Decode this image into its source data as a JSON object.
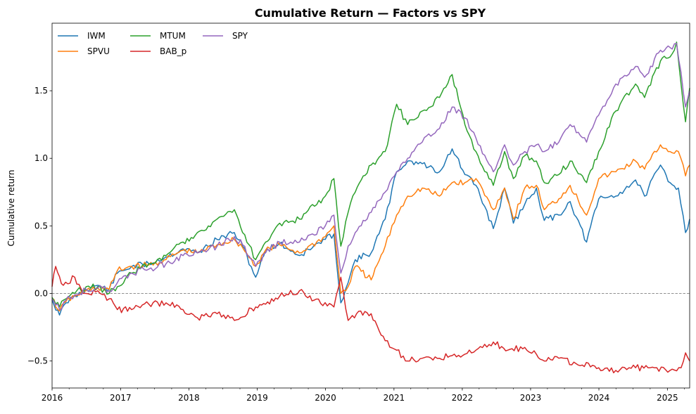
{
  "chart_data": {
    "type": "line",
    "title": "Cumulative Return — Factors vs SPY",
    "xlabel": "",
    "ylabel": "Cumulative return",
    "xlim": [
      "2016-01-01",
      "2025-04-30"
    ],
    "ylim": [
      -0.7,
      2.0
    ],
    "x_ticks": [
      "2016",
      "2017",
      "2018",
      "2019",
      "2020",
      "2021",
      "2022",
      "2023",
      "2024",
      "2025"
    ],
    "y_ticks": [
      -0.5,
      0.0,
      0.5,
      1.0,
      1.5
    ],
    "y_tick_labels": [
      "−0.5",
      "0.0",
      "0.5",
      "1.0",
      "1.5"
    ],
    "reference_line": {
      "y": 0.0,
      "style": "dashed",
      "color": "#808080"
    },
    "grid": false,
    "legend_position": "top-left",
    "series": [
      {
        "name": "IWM",
        "color": "#1f77b4",
        "points": [
          [
            "2016-01-01",
            -0.05
          ],
          [
            "2016-02-10",
            -0.16
          ],
          [
            "2016-03-15",
            -0.07
          ],
          [
            "2016-05-01",
            -0.02
          ],
          [
            "2016-07-01",
            0.03
          ],
          [
            "2016-09-01",
            0.06
          ],
          [
            "2016-11-01",
            0.03
          ],
          [
            "2016-12-15",
            0.15
          ],
          [
            "2017-03-01",
            0.2
          ],
          [
            "2017-06-01",
            0.22
          ],
          [
            "2017-09-01",
            0.27
          ],
          [
            "2017-12-01",
            0.33
          ],
          [
            "2018-02-15",
            0.3
          ],
          [
            "2018-06-01",
            0.4
          ],
          [
            "2018-09-01",
            0.45
          ],
          [
            "2018-10-15",
            0.35
          ],
          [
            "2018-12-24",
            0.12
          ],
          [
            "2019-02-15",
            0.32
          ],
          [
            "2019-05-01",
            0.37
          ],
          [
            "2019-08-15",
            0.28
          ],
          [
            "2019-12-31",
            0.4
          ],
          [
            "2020-02-15",
            0.44
          ],
          [
            "2020-03-23",
            -0.07
          ],
          [
            "2020-05-01",
            0.08
          ],
          [
            "2020-06-08",
            0.25
          ],
          [
            "2020-09-01",
            0.3
          ],
          [
            "2020-11-15",
            0.55
          ],
          [
            "2021-01-15",
            0.9
          ],
          [
            "2021-03-15",
            0.98
          ],
          [
            "2021-06-01",
            0.96
          ],
          [
            "2021-09-01",
            0.9
          ],
          [
            "2021-11-08",
            1.07
          ],
          [
            "2022-01-15",
            0.88
          ],
          [
            "2022-03-15",
            0.8
          ],
          [
            "2022-06-16",
            0.48
          ],
          [
            "2022-08-15",
            0.78
          ],
          [
            "2022-10-01",
            0.52
          ],
          [
            "2022-12-01",
            0.66
          ],
          [
            "2023-02-01",
            0.78
          ],
          [
            "2023-03-15",
            0.54
          ],
          [
            "2023-06-01",
            0.58
          ],
          [
            "2023-07-31",
            0.68
          ],
          [
            "2023-10-27",
            0.38
          ],
          [
            "2023-12-31",
            0.7
          ],
          [
            "2024-03-31",
            0.72
          ],
          [
            "2024-07-15",
            0.84
          ],
          [
            "2024-09-01",
            0.72
          ],
          [
            "2024-11-25",
            0.95
          ],
          [
            "2025-01-15",
            0.82
          ],
          [
            "2025-03-01",
            0.78
          ],
          [
            "2025-04-08",
            0.45
          ],
          [
            "2025-04-30",
            0.55
          ]
        ]
      },
      {
        "name": "SPVU",
        "color": "#ff7f0e",
        "points": [
          [
            "2016-01-01",
            -0.04
          ],
          [
            "2016-02-10",
            -0.13
          ],
          [
            "2016-03-15",
            -0.06
          ],
          [
            "2016-05-01",
            -0.02
          ],
          [
            "2016-07-01",
            0.02
          ],
          [
            "2016-09-01",
            0.04
          ],
          [
            "2016-11-01",
            0.03
          ],
          [
            "2016-12-15",
            0.17
          ],
          [
            "2017-03-01",
            0.2
          ],
          [
            "2017-06-01",
            0.21
          ],
          [
            "2017-09-01",
            0.25
          ],
          [
            "2017-12-01",
            0.32
          ],
          [
            "2018-02-15",
            0.3
          ],
          [
            "2018-06-01",
            0.36
          ],
          [
            "2018-09-01",
            0.4
          ],
          [
            "2018-10-15",
            0.34
          ],
          [
            "2018-12-24",
            0.2
          ],
          [
            "2019-02-15",
            0.32
          ],
          [
            "2019-05-01",
            0.36
          ],
          [
            "2019-08-15",
            0.3
          ],
          [
            "2019-12-31",
            0.42
          ],
          [
            "2020-02-15",
            0.5
          ],
          [
            "2020-03-23",
            0.0
          ],
          [
            "2020-05-01",
            0.05
          ],
          [
            "2020-06-08",
            0.2
          ],
          [
            "2020-09-01",
            0.1
          ],
          [
            "2020-11-15",
            0.35
          ],
          [
            "2021-01-15",
            0.58
          ],
          [
            "2021-03-15",
            0.72
          ],
          [
            "2021-06-01",
            0.78
          ],
          [
            "2021-09-01",
            0.72
          ],
          [
            "2021-11-08",
            0.82
          ],
          [
            "2022-01-15",
            0.82
          ],
          [
            "2022-03-15",
            0.85
          ],
          [
            "2022-06-16",
            0.62
          ],
          [
            "2022-08-15",
            0.78
          ],
          [
            "2022-10-01",
            0.55
          ],
          [
            "2022-12-01",
            0.78
          ],
          [
            "2023-02-01",
            0.8
          ],
          [
            "2023-03-15",
            0.62
          ],
          [
            "2023-06-01",
            0.7
          ],
          [
            "2023-07-31",
            0.8
          ],
          [
            "2023-10-27",
            0.58
          ],
          [
            "2023-12-31",
            0.85
          ],
          [
            "2024-03-31",
            0.9
          ],
          [
            "2024-07-15",
            0.98
          ],
          [
            "2024-09-01",
            0.92
          ],
          [
            "2024-11-25",
            1.1
          ],
          [
            "2025-01-15",
            1.05
          ],
          [
            "2025-03-01",
            1.05
          ],
          [
            "2025-04-08",
            0.87
          ],
          [
            "2025-04-30",
            0.95
          ]
        ]
      },
      {
        "name": "MTUM",
        "color": "#2ca02c",
        "points": [
          [
            "2016-01-01",
            -0.03
          ],
          [
            "2016-02-10",
            -0.1
          ],
          [
            "2016-03-15",
            -0.04
          ],
          [
            "2016-05-01",
            0.0
          ],
          [
            "2016-07-01",
            0.05
          ],
          [
            "2016-09-01",
            0.05
          ],
          [
            "2016-11-01",
            0.0
          ],
          [
            "2016-12-15",
            0.05
          ],
          [
            "2017-03-01",
            0.15
          ],
          [
            "2017-06-01",
            0.22
          ],
          [
            "2017-09-01",
            0.28
          ],
          [
            "2017-12-01",
            0.38
          ],
          [
            "2018-02-15",
            0.45
          ],
          [
            "2018-06-01",
            0.55
          ],
          [
            "2018-09-01",
            0.62
          ],
          [
            "2018-10-15",
            0.45
          ],
          [
            "2018-12-24",
            0.25
          ],
          [
            "2019-02-15",
            0.38
          ],
          [
            "2019-05-01",
            0.52
          ],
          [
            "2019-08-15",
            0.55
          ],
          [
            "2019-12-31",
            0.72
          ],
          [
            "2020-02-15",
            0.85
          ],
          [
            "2020-03-23",
            0.35
          ],
          [
            "2020-05-01",
            0.6
          ],
          [
            "2020-06-08",
            0.75
          ],
          [
            "2020-09-01",
            0.95
          ],
          [
            "2020-11-15",
            1.05
          ],
          [
            "2021-01-15",
            1.4
          ],
          [
            "2021-03-15",
            1.25
          ],
          [
            "2021-06-01",
            1.35
          ],
          [
            "2021-09-01",
            1.45
          ],
          [
            "2021-11-08",
            1.62
          ],
          [
            "2022-01-15",
            1.25
          ],
          [
            "2022-03-15",
            1.05
          ],
          [
            "2022-06-16",
            0.8
          ],
          [
            "2022-08-15",
            1.05
          ],
          [
            "2022-10-01",
            0.85
          ],
          [
            "2022-12-01",
            1.02
          ],
          [
            "2023-02-01",
            0.98
          ],
          [
            "2023-03-15",
            0.82
          ],
          [
            "2023-06-01",
            0.88
          ],
          [
            "2023-07-31",
            0.98
          ],
          [
            "2023-10-27",
            0.82
          ],
          [
            "2023-12-31",
            1.05
          ],
          [
            "2024-03-31",
            1.35
          ],
          [
            "2024-07-15",
            1.55
          ],
          [
            "2024-09-01",
            1.45
          ],
          [
            "2024-11-25",
            1.72
          ],
          [
            "2025-01-15",
            1.75
          ],
          [
            "2025-02-19",
            1.86
          ],
          [
            "2025-04-08",
            1.27
          ],
          [
            "2025-04-30",
            1.52
          ]
        ]
      },
      {
        "name": "BAB_p",
        "color": "#d62728",
        "points": [
          [
            "2016-01-01",
            0.05
          ],
          [
            "2016-01-20",
            0.2
          ],
          [
            "2016-03-01",
            0.06
          ],
          [
            "2016-05-01",
            0.12
          ],
          [
            "2016-06-15",
            0.0
          ],
          [
            "2016-09-01",
            0.02
          ],
          [
            "2016-11-01",
            -0.04
          ],
          [
            "2016-12-15",
            -0.12
          ],
          [
            "2017-03-01",
            -0.12
          ],
          [
            "2017-06-01",
            -0.08
          ],
          [
            "2017-09-01",
            -0.07
          ],
          [
            "2017-12-01",
            -0.12
          ],
          [
            "2018-02-15",
            -0.18
          ],
          [
            "2018-06-01",
            -0.15
          ],
          [
            "2018-09-01",
            -0.2
          ],
          [
            "2018-12-24",
            -0.1
          ],
          [
            "2019-02-15",
            -0.08
          ],
          [
            "2019-05-01",
            -0.02
          ],
          [
            "2019-08-15",
            0.02
          ],
          [
            "2019-11-01",
            -0.05
          ],
          [
            "2020-02-15",
            -0.1
          ],
          [
            "2020-03-23",
            0.12
          ],
          [
            "2020-05-01",
            -0.2
          ],
          [
            "2020-06-15",
            -0.15
          ],
          [
            "2020-09-01",
            -0.15
          ],
          [
            "2020-11-15",
            -0.35
          ],
          [
            "2021-01-15",
            -0.42
          ],
          [
            "2021-03-15",
            -0.5
          ],
          [
            "2021-06-01",
            -0.48
          ],
          [
            "2021-09-01",
            -0.48
          ],
          [
            "2021-11-08",
            -0.46
          ],
          [
            "2022-01-15",
            -0.45
          ],
          [
            "2022-03-15",
            -0.42
          ],
          [
            "2022-06-16",
            -0.36
          ],
          [
            "2022-09-01",
            -0.42
          ],
          [
            "2022-12-01",
            -0.4
          ],
          [
            "2023-02-01",
            -0.45
          ],
          [
            "2023-03-15",
            -0.5
          ],
          [
            "2023-06-01",
            -0.48
          ],
          [
            "2023-09-01",
            -0.52
          ],
          [
            "2023-12-31",
            -0.55
          ],
          [
            "2024-03-31",
            -0.57
          ],
          [
            "2024-07-15",
            -0.55
          ],
          [
            "2024-10-01",
            -0.55
          ],
          [
            "2025-01-15",
            -0.57
          ],
          [
            "2025-03-15",
            -0.55
          ],
          [
            "2025-04-08",
            -0.44
          ],
          [
            "2025-04-30",
            -0.5
          ]
        ]
      },
      {
        "name": "SPY",
        "color": "#9467bd",
        "points": [
          [
            "2016-01-01",
            -0.04
          ],
          [
            "2016-02-10",
            -0.12
          ],
          [
            "2016-03-15",
            -0.05
          ],
          [
            "2016-05-01",
            -0.01
          ],
          [
            "2016-07-01",
            0.03
          ],
          [
            "2016-09-01",
            0.04
          ],
          [
            "2016-11-01",
            0.02
          ],
          [
            "2016-12-15",
            0.08
          ],
          [
            "2017-03-01",
            0.15
          ],
          [
            "2017-06-01",
            0.18
          ],
          [
            "2017-09-01",
            0.22
          ],
          [
            "2017-12-01",
            0.28
          ],
          [
            "2018-02-15",
            0.3
          ],
          [
            "2018-06-01",
            0.35
          ],
          [
            "2018-09-01",
            0.42
          ],
          [
            "2018-10-15",
            0.36
          ],
          [
            "2018-12-24",
            0.2
          ],
          [
            "2019-02-15",
            0.3
          ],
          [
            "2019-05-01",
            0.38
          ],
          [
            "2019-08-15",
            0.38
          ],
          [
            "2019-12-31",
            0.5
          ],
          [
            "2020-02-15",
            0.58
          ],
          [
            "2020-03-23",
            0.15
          ],
          [
            "2020-05-01",
            0.35
          ],
          [
            "2020-06-08",
            0.45
          ],
          [
            "2020-09-01",
            0.6
          ],
          [
            "2020-11-15",
            0.75
          ],
          [
            "2021-01-15",
            0.9
          ],
          [
            "2021-03-15",
            1.0
          ],
          [
            "2021-06-01",
            1.12
          ],
          [
            "2021-09-01",
            1.22
          ],
          [
            "2021-11-08",
            1.38
          ],
          [
            "2022-01-15",
            1.3
          ],
          [
            "2022-03-15",
            1.15
          ],
          [
            "2022-06-16",
            0.9
          ],
          [
            "2022-08-15",
            1.1
          ],
          [
            "2022-10-01",
            0.95
          ],
          [
            "2022-12-01",
            1.05
          ],
          [
            "2023-02-01",
            1.1
          ],
          [
            "2023-03-15",
            1.05
          ],
          [
            "2023-06-01",
            1.12
          ],
          [
            "2023-07-31",
            1.25
          ],
          [
            "2023-10-27",
            1.12
          ],
          [
            "2023-12-31",
            1.32
          ],
          [
            "2024-03-31",
            1.55
          ],
          [
            "2024-07-15",
            1.68
          ],
          [
            "2024-09-01",
            1.6
          ],
          [
            "2024-11-25",
            1.8
          ],
          [
            "2025-01-15",
            1.82
          ],
          [
            "2025-02-19",
            1.85
          ],
          [
            "2025-04-08",
            1.38
          ],
          [
            "2025-04-30",
            1.5
          ]
        ]
      }
    ]
  }
}
